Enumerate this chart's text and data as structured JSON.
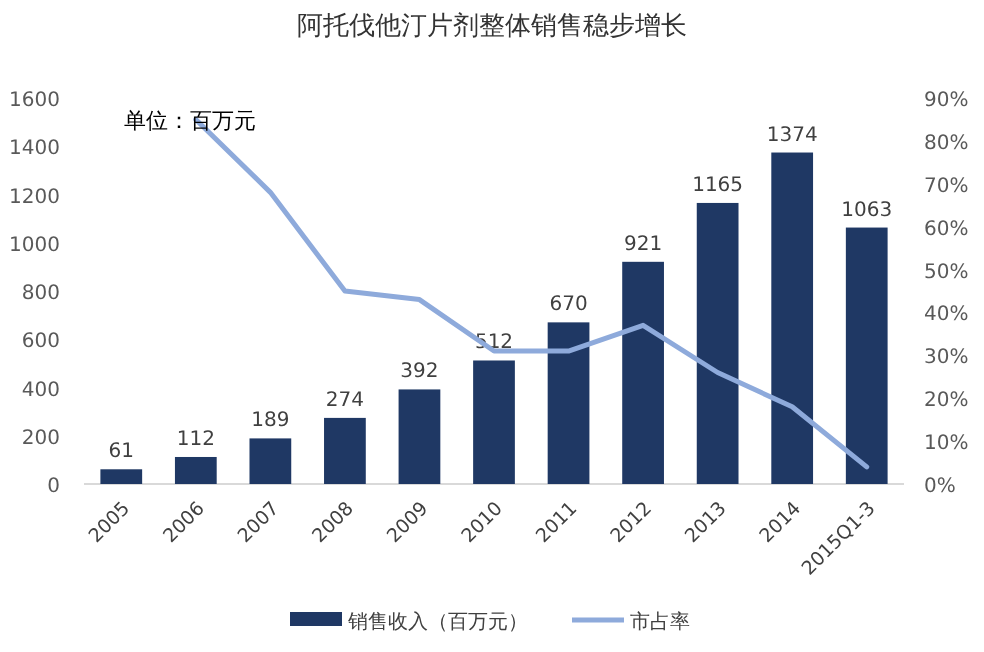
{
  "chart_data": {
    "type": "bar",
    "title": "阿托伐他汀片剂整体销售稳步增长",
    "categories": [
      "2005",
      "2006",
      "2007",
      "2008",
      "2009",
      "2010",
      "2011",
      "2012",
      "2013",
      "2014",
      "2015Q1-3"
    ],
    "series": [
      {
        "name": "销售收入（百万元）",
        "color": "#1f3864",
        "values": [
          61,
          112,
          189,
          274,
          392,
          512,
          670,
          921,
          1165,
          1374,
          1063
        ],
        "value_labels": [
          "61",
          "112",
          "189",
          "274",
          "392",
          "512",
          "670",
          "921",
          "1165",
          "1374",
          "1063"
        ]
      },
      {
        "name": "市占率",
        "type": "line",
        "axis": "y2",
        "color": "#8eaadb",
        "values": [
          null,
          85,
          68,
          45,
          43,
          31,
          31,
          37,
          26,
          18,
          4
        ]
      }
    ],
    "ylim": [
      0,
      1600
    ],
    "yticks": [
      0,
      200,
      400,
      600,
      800,
      1000,
      1200,
      1400,
      1600
    ],
    "y2lim": [
      0,
      90
    ],
    "y2ticks": [
      {
        "value": 0,
        "label": "0%"
      },
      {
        "value": 10,
        "label": "10%"
      },
      {
        "value": 20,
        "label": "20%"
      },
      {
        "value": 30,
        "label": "30%"
      },
      {
        "value": 40,
        "label": "40%"
      },
      {
        "value": 50,
        "label": "50%"
      },
      {
        "value": 60,
        "label": "60%"
      },
      {
        "value": 70,
        "label": "70%"
      },
      {
        "value": 80,
        "label": "80%"
      },
      {
        "value": 90,
        "label": "90%"
      }
    ],
    "annotations": [
      "单位：百万元"
    ],
    "legend": "bottom",
    "grid": false
  }
}
